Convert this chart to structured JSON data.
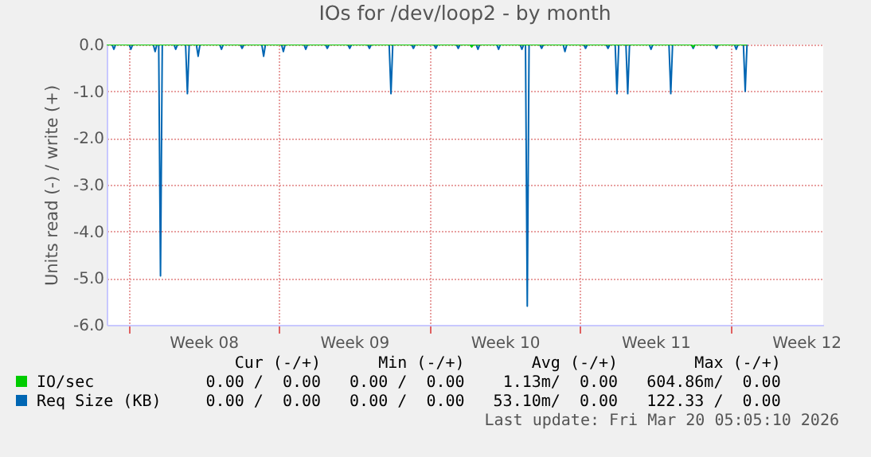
{
  "chart_data": {
    "type": "line",
    "title": "IOs for /dev/loop2 - by month",
    "ylabel": "Units read (-) / write (+)",
    "xlim": [
      "2026-02-15T00:00",
      "2026-03-20T07:00"
    ],
    "xticks": [
      {
        "value": "2026-02-16T00:00",
        "label": null
      },
      {
        "value": "2026-02-19T12:00",
        "label": "Week 08"
      },
      {
        "value": "2026-02-23T00:00",
        "label": null
      },
      {
        "value": "2026-02-26T12:00",
        "label": "Week 09"
      },
      {
        "value": "2026-03-02T00:00",
        "label": null
      },
      {
        "value": "2026-03-05T12:00",
        "label": "Week 10"
      },
      {
        "value": "2026-03-09T00:00",
        "label": null
      },
      {
        "value": "2026-03-12T12:00",
        "label": "Week 11"
      },
      {
        "value": "2026-03-16T00:00",
        "label": null
      },
      {
        "value": "2026-03-19T12:00",
        "label": "Week 12"
      }
    ],
    "ylim": [
      -6,
      0
    ],
    "yticks": [
      {
        "value": -6,
        "label": "-6.0"
      },
      {
        "value": -5,
        "label": "-5.0"
      },
      {
        "value": -4,
        "label": "-4.0"
      },
      {
        "value": -3,
        "label": "-3.0"
      },
      {
        "value": -2,
        "label": "-2.0"
      },
      {
        "value": -1,
        "label": "-1.0"
      },
      {
        "value": 0,
        "label": "0.0"
      }
    ],
    "grid": true,
    "legend": "bottom",
    "line_style": "solid",
    "series": [
      {
        "name": "IO/sec",
        "color": "#00cc00",
        "x": [
          "2026-02-15T00:00",
          "2026-03-03T21:00",
          "2026-03-03T23:00",
          "2026-03-04T01:00",
          "2026-03-14T04:00",
          "2026-03-14T06:00",
          "2026-03-14T08:00",
          "2026-03-16T18:00"
        ],
        "values": [
          0,
          0,
          -0.05,
          0,
          0,
          -0.05,
          0,
          0
        ]
      },
      {
        "name": "Req Size (KB)",
        "color": "#0066b3",
        "x": [
          "2026-02-15T00:00",
          "2026-02-15T06:00",
          "2026-02-15T08:00",
          "2026-02-15T10:00",
          "2026-02-16T01:00",
          "2026-02-16T03:00",
          "2026-02-16T05:00",
          "2026-02-17T04:00",
          "2026-02-17T06:00",
          "2026-02-17T08:00",
          "2026-02-17T10:00",
          "2026-02-17T12:00",
          "2026-02-17T14:00",
          "2026-02-18T03:00",
          "2026-02-18T05:00",
          "2026-02-18T07:00",
          "2026-02-18T16:00",
          "2026-02-18T18:00",
          "2026-02-18T20:00",
          "2026-02-19T04:00",
          "2026-02-19T06:00",
          "2026-02-19T08:00",
          "2026-02-20T06:00",
          "2026-02-20T08:00",
          "2026-02-20T10:00",
          "2026-02-21T05:00",
          "2026-02-21T07:00",
          "2026-02-21T09:00",
          "2026-02-22T05:00",
          "2026-02-22T07:00",
          "2026-02-22T09:00",
          "2026-02-23T03:00",
          "2026-02-23T05:00",
          "2026-02-23T07:00",
          "2026-02-24T04:00",
          "2026-02-24T06:00",
          "2026-02-24T08:00",
          "2026-02-25T04:00",
          "2026-02-25T06:00",
          "2026-02-25T08:00",
          "2026-02-26T05:00",
          "2026-02-26T07:00",
          "2026-02-26T09:00",
          "2026-02-27T03:00",
          "2026-02-27T05:00",
          "2026-02-27T07:00",
          "2026-02-28T03:00",
          "2026-02-28T05:00",
          "2026-02-28T07:00",
          "2026-03-01T04:00",
          "2026-03-01T06:00",
          "2026-03-01T08:00",
          "2026-03-02T05:00",
          "2026-03-02T07:00",
          "2026-03-02T09:00",
          "2026-03-03T06:00",
          "2026-03-03T08:00",
          "2026-03-03T10:00",
          "2026-03-04T04:00",
          "2026-03-04T06:00",
          "2026-03-04T08:00",
          "2026-03-05T03:00",
          "2026-03-05T05:00",
          "2026-03-05T07:00",
          "2026-03-06T05:00",
          "2026-03-06T07:00",
          "2026-03-06T09:00",
          "2026-03-06T11:00",
          "2026-03-06T13:00",
          "2026-03-06T15:00",
          "2026-03-07T03:00",
          "2026-03-07T05:00",
          "2026-03-07T07:00",
          "2026-03-08T05:00",
          "2026-03-08T07:00",
          "2026-03-08T09:00",
          "2026-03-09T04:00",
          "2026-03-09T06:00",
          "2026-03-09T08:00",
          "2026-03-10T05:00",
          "2026-03-10T07:00",
          "2026-03-10T09:00",
          "2026-03-10T15:00",
          "2026-03-10T17:00",
          "2026-03-10T19:00",
          "2026-03-11T03:00",
          "2026-03-11T05:00",
          "2026-03-11T07:00",
          "2026-03-12T05:00",
          "2026-03-12T07:00",
          "2026-03-12T09:00",
          "2026-03-13T03:00",
          "2026-03-13T05:00",
          "2026-03-13T07:00",
          "2026-03-14T04:00",
          "2026-03-14T06:00",
          "2026-03-14T08:00",
          "2026-03-15T06:00",
          "2026-03-15T08:00",
          "2026-03-15T10:00",
          "2026-03-16T04:00",
          "2026-03-16T06:00",
          "2026-03-16T08:00",
          "2026-03-16T14:00",
          "2026-03-16T16:00",
          "2026-03-16T18:00"
        ],
        "values": [
          0,
          0,
          -0.1,
          0,
          0,
          -0.1,
          0,
          0,
          -0.15,
          0,
          0,
          -4.95,
          0,
          0,
          -0.1,
          0,
          0,
          -1.05,
          0,
          0,
          -0.25,
          0,
          0,
          -0.1,
          0,
          0,
          -0.08,
          0,
          0,
          -0.25,
          0,
          0,
          -0.15,
          0,
          0,
          -0.1,
          0,
          0,
          -0.08,
          0,
          0,
          -0.08,
          0,
          0,
          -0.08,
          0,
          0,
          -1.05,
          0,
          0,
          -0.08,
          0,
          0,
          -0.08,
          0,
          0,
          -0.08,
          0,
          0,
          -0.1,
          0,
          0,
          -0.1,
          0,
          0,
          -0.1,
          0,
          0,
          -5.6,
          0,
          0,
          -0.08,
          0,
          0,
          -0.15,
          0,
          0,
          -0.08,
          0,
          0,
          -0.08,
          0,
          0,
          -1.05,
          0,
          0,
          -1.05,
          0,
          0,
          -0.1,
          0,
          0,
          -1.05,
          0,
          0,
          -0.08,
          0,
          0,
          -0.08,
          0,
          0,
          -0.1,
          0,
          0,
          -1.0,
          0
        ]
      }
    ],
    "annotations": [
      "Cur (-/+)",
      "Min (-/+)",
      "Avg (-/+)",
      "Max (-/+)",
      "0.00 /  0.00",
      "0.00 /  0.00",
      "1.13m/  0.00",
      "604.86m/  0.00",
      "0.00 /  0.00",
      "0.00 /  0.00",
      "53.10m/  0.00",
      "122.33 /  0.00",
      "Last update: Fri Mar 20 05:05:10 2026"
    ]
  }
}
